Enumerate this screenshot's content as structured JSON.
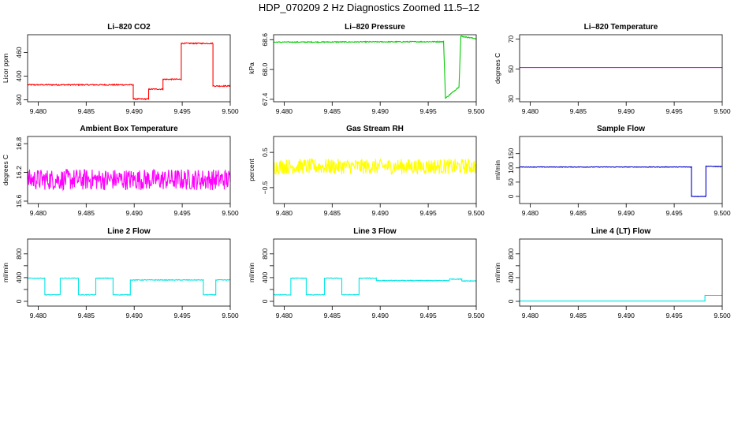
{
  "title": "HDP_070209  2 Hz Diagnostics Zoomed 11.5–12",
  "x_ticks": [
    "9.480",
    "9.485",
    "9.490",
    "9.495",
    "9.500"
  ],
  "chart_data": [
    {
      "type": "line",
      "title": "Li–820 CO2",
      "ylabel": "Licor ppm",
      "color": "#ff0000",
      "xlim": [
        9.4789,
        9.5
      ],
      "ylim": [
        335,
        505
      ],
      "yticks": [
        340,
        400,
        460
      ],
      "yticklabels": [
        "340",
        "400",
        "460"
      ],
      "noise": 1.5,
      "x": [
        9.4789,
        9.4899,
        9.4899,
        9.4915,
        9.4915,
        9.493,
        9.493,
        9.4949,
        9.4949,
        9.4982,
        9.4982,
        9.5
      ],
      "y": [
        378,
        378,
        342,
        342,
        367,
        367,
        392,
        392,
        483,
        483,
        375,
        375
      ]
    },
    {
      "type": "line",
      "title": "Li–820 Pressure",
      "ylabel": "kPa",
      "color": "#00cc00",
      "xlim": [
        9.4789,
        9.5
      ],
      "ylim": [
        67.35,
        68.7
      ],
      "yticks": [
        67.4,
        68.0,
        68.6
      ],
      "yticklabels": [
        "67.4",
        "68.0",
        "68.6"
      ],
      "noise": 0.01,
      "x": [
        9.4789,
        9.4966,
        9.4966,
        9.4968,
        9.4968,
        9.4982,
        9.4982,
        9.4984,
        9.4984,
        9.5
      ],
      "y": [
        68.55,
        68.56,
        68.56,
        67.42,
        67.42,
        67.65,
        67.65,
        68.67,
        68.67,
        68.62
      ]
    },
    {
      "type": "line",
      "title": "Li–820 Temperature",
      "ylabel": "degrees C",
      "color": "#ee00ee",
      "xlim": [
        9.4789,
        9.5
      ],
      "ylim": [
        28,
        73
      ],
      "yticks": [
        30,
        50,
        70
      ],
      "yticklabels": [
        "30",
        "50",
        "70"
      ],
      "noise": 0,
      "x": [
        9.4789,
        9.5
      ],
      "y": [
        51.0,
        51.0
      ]
    },
    {
      "type": "line",
      "title": "Ambient Box Temperature",
      "ylabel": "degrees C",
      "color": "#ff00ff",
      "xlim": [
        9.4789,
        9.5
      ],
      "ylim": [
        15.55,
        16.95
      ],
      "yticks": [
        15.6,
        16.2,
        16.8
      ],
      "yticklabels": [
        "15.6",
        "16.2",
        "16.8"
      ],
      "noise": 0.22,
      "x": [
        9.4789,
        9.5
      ],
      "y": [
        16.05,
        16.05
      ]
    },
    {
      "type": "line",
      "title": "Gas Stream RH",
      "ylabel": "percent",
      "color": "#ffff00",
      "xlim": [
        9.4789,
        9.5
      ],
      "ylim": [
        -0.95,
        0.95
      ],
      "yticks": [
        -0.5,
        0.5
      ],
      "yticklabels": [
        "−0.5",
        "0.5"
      ],
      "noise": 0.22,
      "x": [
        9.4789,
        9.5
      ],
      "y": [
        0.1,
        0.1
      ]
    },
    {
      "type": "line",
      "title": "Sample Flow",
      "ylabel": "ml/min",
      "color": "#0000cc",
      "xlim": [
        9.4789,
        9.5
      ],
      "ylim": [
        -25,
        210
      ],
      "yticks": [
        0,
        50,
        100,
        150
      ],
      "yticklabels": [
        "0",
        "50",
        "100",
        "150"
      ],
      "noise": 1,
      "x": [
        9.4789,
        9.4968,
        9.4968,
        9.4983,
        9.4983,
        9.5
      ],
      "y": [
        103,
        103,
        0,
        0,
        106,
        104
      ]
    },
    {
      "type": "line",
      "title": "Line 2 Flow",
      "ylabel": "ml/min",
      "color": "#00e5e5",
      "xlim": [
        9.4789,
        9.5
      ],
      "ylim": [
        -80,
        1050
      ],
      "yticks": [
        0,
        200,
        400,
        600,
        800
      ],
      "yticklabels": [
        "0",
        "",
        "400",
        "",
        "800"
      ],
      "noise": 6,
      "x": [
        9.4789,
        9.4807,
        9.4807,
        9.4823,
        9.4823,
        9.4842,
        9.4842,
        9.486,
        9.486,
        9.4878,
        9.4878,
        9.4896,
        9.4896,
        9.4972,
        9.4972,
        9.4985,
        9.4985,
        9.5
      ],
      "y": [
        390,
        390,
        110,
        110,
        390,
        390,
        110,
        110,
        390,
        390,
        110,
        110,
        360,
        360,
        110,
        110,
        360,
        360
      ]
    },
    {
      "type": "line",
      "title": "Line 3 Flow",
      "ylabel": "ml/min",
      "color": "#00e5e5",
      "xlim": [
        9.4789,
        9.5
      ],
      "ylim": [
        -80,
        1050
      ],
      "yticks": [
        0,
        200,
        400,
        600,
        800
      ],
      "yticklabels": [
        "0",
        "",
        "400",
        "",
        "800"
      ],
      "noise": 6,
      "x": [
        9.4789,
        9.4807,
        9.4807,
        9.4823,
        9.4823,
        9.4842,
        9.4842,
        9.486,
        9.486,
        9.4878,
        9.4878,
        9.4896,
        9.4896,
        9.4972,
        9.4972,
        9.4985,
        9.4985,
        9.5
      ],
      "y": [
        110,
        110,
        390,
        390,
        110,
        110,
        390,
        390,
        110,
        110,
        390,
        390,
        350,
        350,
        375,
        375,
        345,
        345
      ]
    },
    {
      "type": "line",
      "title": "Line 4 (LT) Flow",
      "ylabel": "ml/min",
      "color": "#00e5e5",
      "xlim": [
        9.4789,
        9.5
      ],
      "ylim": [
        -80,
        1050
      ],
      "yticks": [
        0,
        200,
        400,
        600,
        800
      ],
      "yticklabels": [
        "0",
        "",
        "400",
        "",
        "800"
      ],
      "noise": 0,
      "x": [
        9.4789,
        9.4982,
        9.4982,
        9.5
      ],
      "y": [
        5,
        5,
        100,
        100
      ]
    }
  ]
}
